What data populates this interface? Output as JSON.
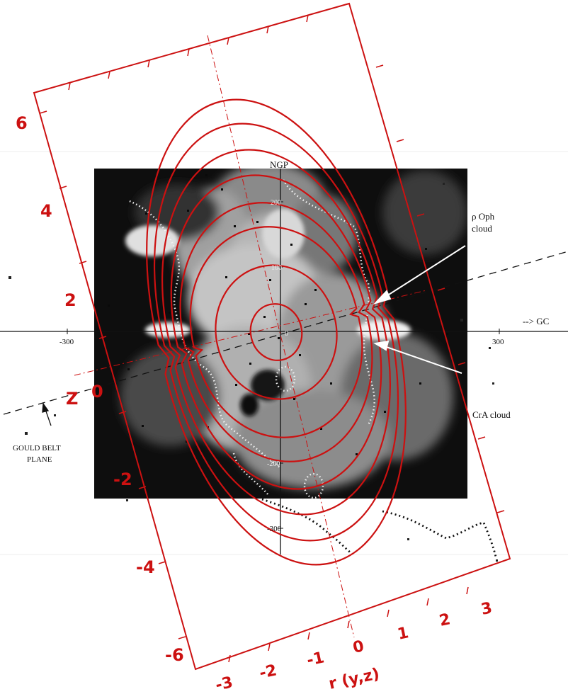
{
  "map": {
    "ngp_label": "NGP",
    "gc_label": "--> GC",
    "rho_oph_line1": "ρ  Oph",
    "rho_oph_line2": "cloud",
    "cra_label": "CrA cloud",
    "gould_line1": "GOULD BELT",
    "gould_line2": "PLANE",
    "x_ticks": [
      "-300",
      "300"
    ],
    "y_ticks": [
      "200",
      "100",
      "0",
      "-200",
      "-300"
    ]
  },
  "model_frame": {
    "z_axis_label": "Z",
    "r_axis_label": "r (y,z)",
    "z_ticks": [
      "6",
      "4",
      "2",
      "0",
      "-2",
      "-4",
      "-6"
    ],
    "r_ticks": [
      "-3",
      "-2",
      "-1",
      "0",
      "1",
      "2",
      "3"
    ]
  },
  "colors": {
    "frame": "#cc1111",
    "contours": "#cc1111",
    "image_background": "#111111"
  }
}
